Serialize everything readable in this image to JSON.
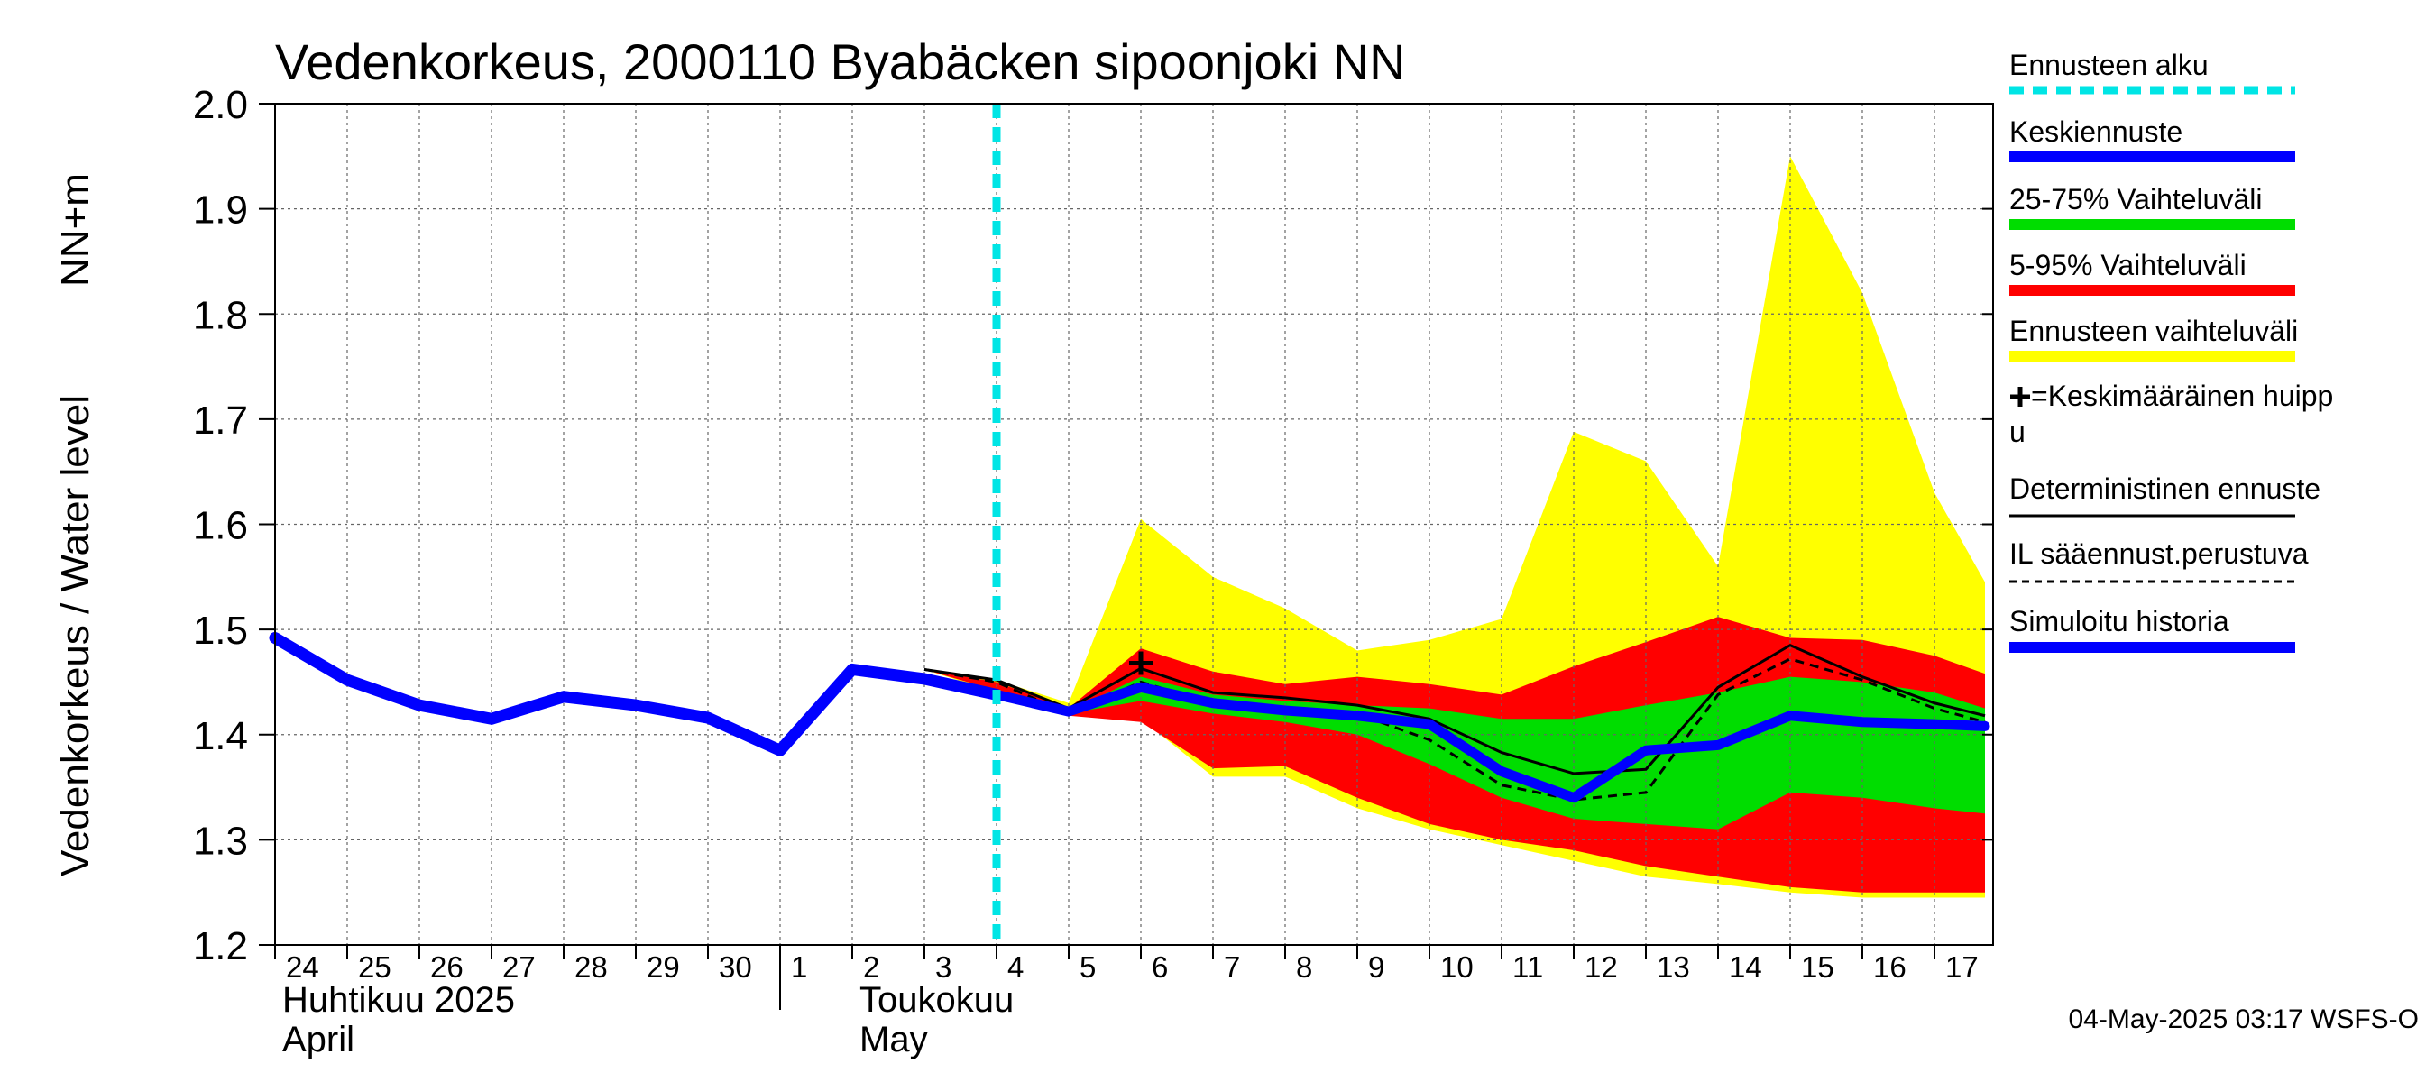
{
  "chart_data": {
    "type": "area",
    "title": "Vedenkorkeus, 2000110 Byabäcken sipoonjoki NN",
    "ylabel_left": "Vedenkorkeus / Water level",
    "ylabel_right": "NN+m",
    "ylim": [
      1.2,
      2.0
    ],
    "yticks": [
      "1.2",
      "1.3",
      "1.4",
      "1.5",
      "1.6",
      "1.7",
      "1.8",
      "1.9",
      "2.0"
    ],
    "grid": true,
    "legend_placement": "right",
    "x_start_date": "2025-04-24",
    "x_days": 23.7,
    "x_tick_labels": [
      "24",
      "25",
      "26",
      "27",
      "28",
      "29",
      "30",
      "1",
      "2",
      "3",
      "4",
      "5",
      "6",
      "7",
      "8",
      "9",
      "10",
      "11",
      "12",
      "13",
      "14",
      "15",
      "16",
      "17"
    ],
    "months": [
      {
        "fi": "Huhtikuu  2025",
        "en": "April"
      },
      {
        "fi": "Toukokuu",
        "en": "May"
      }
    ],
    "forecast_start_day": 10.0,
    "series": [
      {
        "name": "Ennusteen vaihteluväli",
        "color": "#ffff00",
        "x": [
          9,
          10,
          11,
          12,
          13,
          14,
          15,
          16,
          17,
          18,
          19,
          20,
          21,
          22,
          23,
          23.7
        ],
        "upper": [
          1.462,
          1.452,
          1.43,
          1.605,
          1.55,
          1.52,
          1.48,
          1.49,
          1.51,
          1.688,
          1.66,
          1.56,
          1.95,
          1.82,
          1.63,
          1.545
        ],
        "lower": [
          1.462,
          1.44,
          1.42,
          1.415,
          1.36,
          1.36,
          1.33,
          1.31,
          1.295,
          1.28,
          1.265,
          1.258,
          1.25,
          1.245,
          1.245,
          1.245
        ]
      },
      {
        "name": "5-95% Vaihteluväli",
        "color": "#ff0000",
        "x": [
          9,
          10,
          11,
          12,
          13,
          14,
          15,
          16,
          17,
          18,
          19,
          20,
          21,
          22,
          23,
          23.7
        ],
        "upper": [
          1.462,
          1.45,
          1.425,
          1.482,
          1.46,
          1.448,
          1.455,
          1.448,
          1.438,
          1.465,
          1.488,
          1.512,
          1.492,
          1.49,
          1.475,
          1.458
        ],
        "lower": [
          1.462,
          1.442,
          1.418,
          1.412,
          1.368,
          1.37,
          1.34,
          1.315,
          1.3,
          1.29,
          1.275,
          1.265,
          1.255,
          1.25,
          1.25,
          1.25
        ]
      },
      {
        "name": "25-75% Vaihteluväli",
        "color": "#00dd00",
        "x": [
          11,
          12,
          13,
          14,
          15,
          16,
          17,
          18,
          19,
          20,
          21,
          22,
          23,
          23.7
        ],
        "upper": [
          1.422,
          1.455,
          1.438,
          1.432,
          1.428,
          1.425,
          1.415,
          1.415,
          1.428,
          1.44,
          1.455,
          1.45,
          1.44,
          1.425
        ],
        "lower": [
          1.42,
          1.432,
          1.42,
          1.412,
          1.4,
          1.372,
          1.34,
          1.32,
          1.315,
          1.31,
          1.345,
          1.34,
          1.33,
          1.325
        ]
      },
      {
        "name": "Simuloitu historia",
        "color": "#0000ff",
        "x": [
          0,
          1,
          2,
          3,
          4,
          5,
          6,
          7,
          8,
          9,
          10
        ],
        "y": [
          1.492,
          1.452,
          1.428,
          1.415,
          1.436,
          1.428,
          1.416,
          1.385,
          1.462,
          1.453,
          1.438
        ]
      },
      {
        "name": "Keskiennuste",
        "color": "#0000ff",
        "x": [
          10,
          11,
          12,
          13,
          14,
          15,
          16,
          17,
          18,
          19,
          20,
          21,
          22,
          23,
          23.7
        ],
        "y": [
          1.438,
          1.422,
          1.445,
          1.43,
          1.423,
          1.418,
          1.41,
          1.365,
          1.34,
          1.385,
          1.39,
          1.418,
          1.412,
          1.41,
          1.408
        ]
      },
      {
        "name": "Deterministinen ennuste",
        "color": "#000000",
        "x": [
          9,
          10,
          11,
          12,
          13,
          14,
          15,
          16,
          17,
          18,
          19,
          20,
          21,
          22,
          23,
          23.7
        ],
        "y": [
          1.462,
          1.452,
          1.425,
          1.463,
          1.44,
          1.435,
          1.428,
          1.415,
          1.383,
          1.363,
          1.367,
          1.445,
          1.485,
          1.455,
          1.43,
          1.418
        ]
      },
      {
        "name": "IL sääennust.perustuva",
        "color": "#000000",
        "x": [
          9,
          10,
          11,
          12,
          13,
          14,
          15,
          16,
          17,
          18,
          19,
          20,
          21,
          22,
          23,
          23.7
        ],
        "y": [
          1.462,
          1.45,
          1.42,
          1.45,
          1.43,
          1.425,
          1.42,
          1.395,
          1.352,
          1.338,
          1.345,
          1.438,
          1.472,
          1.452,
          1.425,
          1.412
        ]
      }
    ],
    "mean_peak": {
      "name": "+=Keskimääräinen huippu",
      "x": 12.0,
      "y": 1.468
    },
    "legend": [
      {
        "label": "Ennusteen alku",
        "style": "dashed",
        "color": "#00e5e5"
      },
      {
        "label": "Keskiennuste",
        "style": "line",
        "color": "#0000ff"
      },
      {
        "label": "25-75% Vaihteluväli",
        "style": "line",
        "color": "#00dd00"
      },
      {
        "label": "5-95% Vaihteluväli",
        "style": "line",
        "color": "#ff0000"
      },
      {
        "label": "Ennusteen vaihteluväli",
        "style": "line",
        "color": "#ffff00"
      },
      {
        "label": "+=Keskimääräinen huippu",
        "style": "peak",
        "color": "#000000"
      },
      {
        "label": "Deterministinen ennuste",
        "style": "thin",
        "color": "#000000"
      },
      {
        "label": "IL sääennust.perustuva",
        "style": "dotted",
        "color": "#000000"
      },
      {
        "label": "Simuloitu historia",
        "style": "line",
        "color": "#0000ff"
      }
    ],
    "footer": "04-May-2025 03:17 WSFS-O"
  }
}
